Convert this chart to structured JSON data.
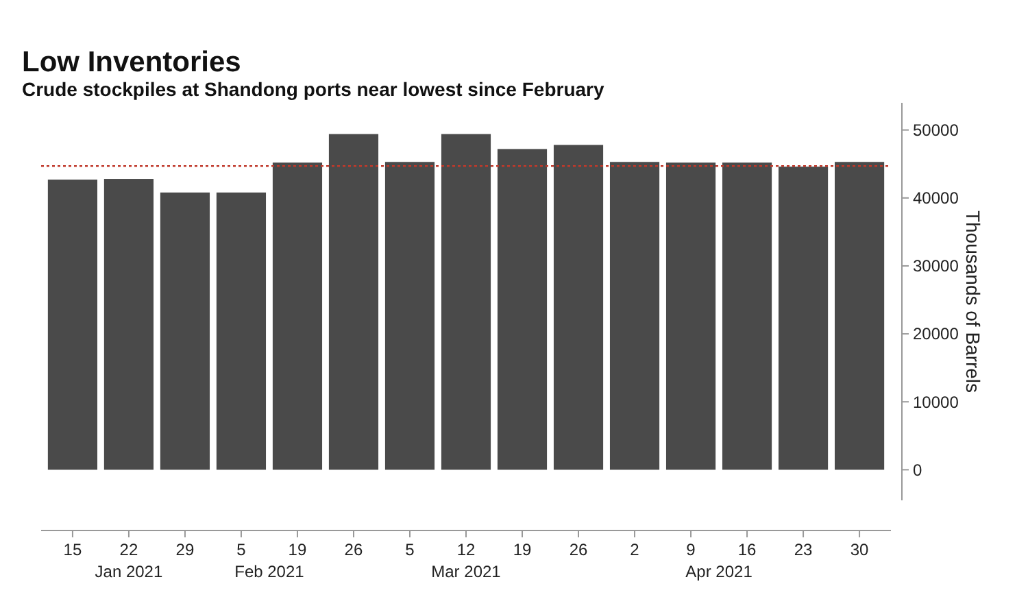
{
  "chart_data": {
    "type": "bar",
    "title": "Low Inventories",
    "subtitle": "Crude stockpiles at Shandong ports near lowest since February",
    "ylabel": "Thousands of Barrels",
    "categories": [
      "15",
      "22",
      "29",
      "5",
      "19",
      "26",
      "5",
      "12",
      "19",
      "26",
      "2",
      "9",
      "16",
      "23",
      "30"
    ],
    "values": [
      42700,
      42800,
      40800,
      40800,
      45200,
      49400,
      45300,
      49400,
      47200,
      47800,
      45300,
      45200,
      45200,
      44600,
      45300
    ],
    "color": "#4a4a4a",
    "ylim": [
      -4500,
      54000
    ],
    "yticks": [
      0,
      10000,
      20000,
      30000,
      40000,
      50000
    ],
    "ref_lines": [
      {
        "axis": "y",
        "value": 44700,
        "color": "#c0392b",
        "line_style": "dotted"
      }
    ],
    "annotations": [
      "Jan 2021",
      "Feb 2021",
      "Mar 2021",
      "Apr 2021"
    ],
    "grid": false
  }
}
